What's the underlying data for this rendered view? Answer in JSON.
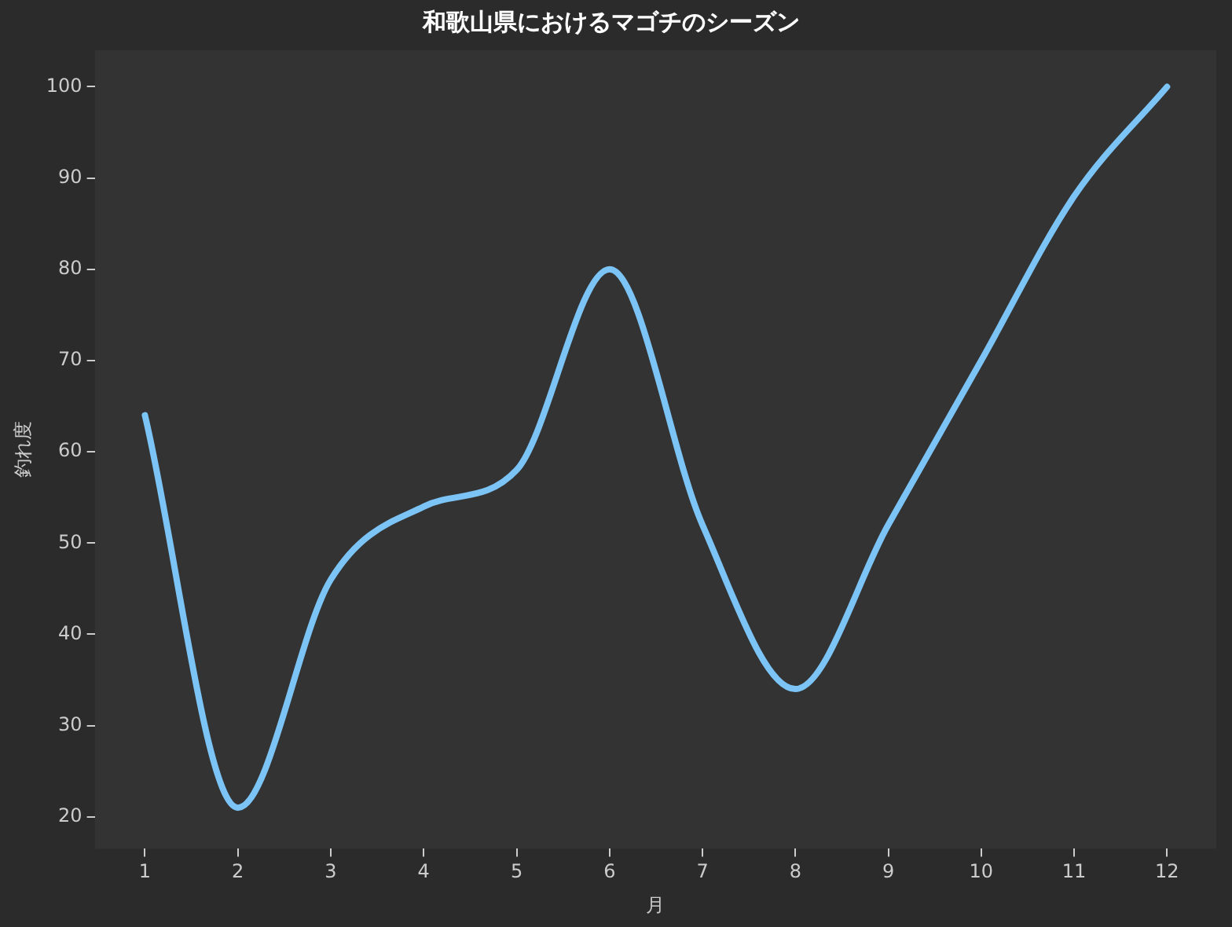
{
  "chart_data": {
    "type": "line",
    "title": "和歌山県におけるマゴチのシーズン",
    "xlabel": "月",
    "ylabel": "釣れ度",
    "x": [
      1,
      2,
      3,
      4,
      5,
      6,
      7,
      8,
      9,
      10,
      11,
      12
    ],
    "series": [
      {
        "color": "#7cc4f5",
        "values": [
          64,
          21,
          46,
          54,
          58,
          80,
          52,
          34,
          52,
          70,
          88,
          100
        ]
      }
    ],
    "xlim": [
      0.46,
      12.53
    ],
    "xticks": [
      1,
      2,
      3,
      4,
      5,
      6,
      7,
      8,
      9,
      10,
      11,
      12
    ],
    "ylim": [
      16.5,
      104
    ],
    "yticks": [
      20,
      30,
      40,
      50,
      60,
      70,
      80,
      90,
      100
    ],
    "grid": false,
    "marker": "none"
  }
}
